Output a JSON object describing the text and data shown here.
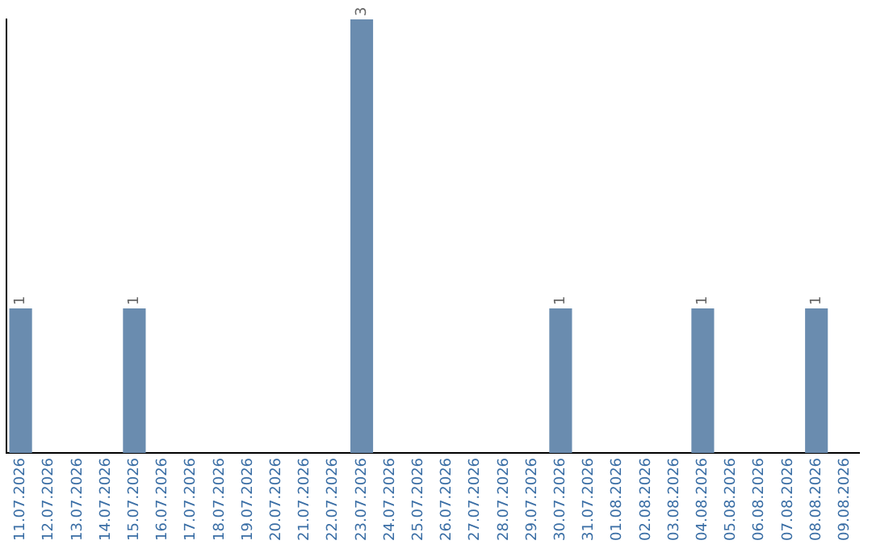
{
  "chart_data": {
    "type": "bar",
    "categories": [
      "11.07.2026",
      "12.07.2026",
      "13.07.2026",
      "14.07.2026",
      "15.07.2026",
      "16.07.2026",
      "17.07.2026",
      "18.07.2026",
      "19.07.2026",
      "20.07.2026",
      "21.07.2026",
      "22.07.2026",
      "23.07.2026",
      "24.07.2026",
      "25.07.2026",
      "26.07.2026",
      "27.07.2026",
      "28.07.2026",
      "29.07.2026",
      "30.07.2026",
      "31.07.2026",
      "01.08.2026",
      "02.08.2026",
      "03.08.2026",
      "04.08.2026",
      "05.08.2026",
      "06.08.2026",
      "07.08.2026",
      "08.08.2026",
      "09.08.2026"
    ],
    "values": [
      1,
      0,
      0,
      0,
      1,
      0,
      0,
      0,
      0,
      0,
      0,
      0,
      3,
      0,
      0,
      0,
      0,
      0,
      0,
      1,
      0,
      0,
      0,
      0,
      1,
      0,
      0,
      0,
      1,
      0
    ],
    "value_labels": [
      "1",
      null,
      null,
      null,
      "1",
      null,
      null,
      null,
      null,
      null,
      null,
      null,
      "3",
      null,
      null,
      null,
      null,
      null,
      null,
      "1",
      null,
      null,
      null,
      null,
      "1",
      null,
      null,
      null,
      "1",
      null
    ],
    "color": "#6a8caf",
    "grid": false,
    "legend": false,
    "tick_labels": "x"
  }
}
